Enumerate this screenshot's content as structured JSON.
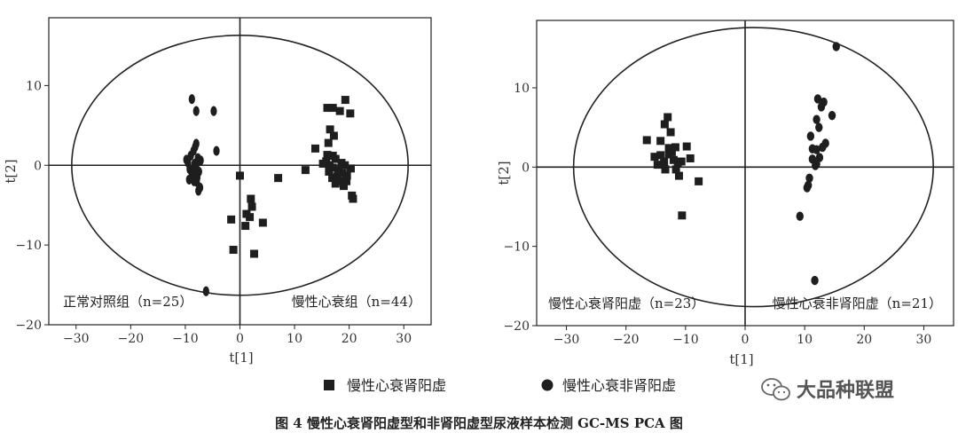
{
  "caption": "图 4   慢性心衰肾阳虚型和非肾阳虚型尿液样本检测 GC-MS PCA 图",
  "watermark": "大品种联盟",
  "legend": [
    {
      "label": "慢性心衰肾阳虚",
      "marker": "square"
    },
    {
      "label": "慢性心衰非肾阳虚",
      "marker": "circle"
    }
  ],
  "colors": {
    "marker": "#1e1e1e",
    "axis": "#222222",
    "ellipse": "#222222"
  },
  "chart_data": [
    {
      "type": "scatter",
      "xlabel": "t[1]",
      "ylabel": "t[2]",
      "xlim": [
        -35,
        35
      ],
      "ylim": [
        -20,
        18.5
      ],
      "xticks": [
        -30,
        -20,
        -10,
        0,
        10,
        20,
        30
      ],
      "yticks": [
        -20,
        -10,
        0,
        10
      ],
      "ellipse": {
        "cx": 0,
        "cy": 0,
        "rx": 30.8,
        "ry": 16.3
      },
      "group_labels": [
        {
          "text": "正常对照组（n=25）",
          "pos": "bottom-left"
        },
        {
          "text": "慢性心衰组（n=44）",
          "pos": "bottom-right"
        }
      ],
      "series": [
        {
          "marker": "diamond",
          "points": [
            [
              -8.8,
              8.3
            ],
            [
              -8,
              6.8
            ],
            [
              -4.8,
              6.8
            ],
            [
              -4.3,
              1.8
            ],
            [
              -6.2,
              -15.8
            ],
            [
              -9.8,
              0.7
            ],
            [
              -9.5,
              0.3
            ],
            [
              -9.2,
              -0.5
            ],
            [
              -9.0,
              1.2
            ],
            [
              -8.8,
              -1.3
            ],
            [
              -8.6,
              -0.8
            ],
            [
              -8.5,
              1.8
            ],
            [
              -8.3,
              0.2
            ],
            [
              -8.2,
              2.3
            ],
            [
              -8.0,
              -0.2
            ],
            [
              -7.9,
              -2.1
            ],
            [
              -7.7,
              0.9
            ],
            [
              -7.5,
              -0.8
            ],
            [
              -7.3,
              -2.8
            ],
            [
              -7.6,
              -3.2
            ],
            [
              -8.4,
              -2.0
            ],
            [
              -9.3,
              -1.8
            ],
            [
              -8.0,
              2.7
            ],
            [
              -7.2,
              0.6
            ],
            [
              -7.8,
              -1.5
            ]
          ]
        },
        {
          "marker": "square",
          "points": [
            [
              16,
              7.2
            ],
            [
              17,
              7.2
            ],
            [
              18.3,
              6.8
            ],
            [
              19.3,
              8.2
            ],
            [
              20.2,
              6.5
            ],
            [
              16.5,
              4.5
            ],
            [
              17.2,
              3.7
            ],
            [
              13.8,
              2.1
            ],
            [
              16,
              1.3
            ],
            [
              15.8,
              0.5
            ],
            [
              16.4,
              0
            ],
            [
              17,
              -0.3
            ],
            [
              17.5,
              0.8
            ],
            [
              18,
              -0.6
            ],
            [
              18.6,
              0.3
            ],
            [
              19.2,
              0
            ],
            [
              16.3,
              -0.8
            ],
            [
              17.8,
              -1.4
            ],
            [
              18.4,
              -2.0
            ],
            [
              19.5,
              -2.0
            ],
            [
              20.3,
              -0.4
            ],
            [
              20.5,
              -3.8
            ],
            [
              20.7,
              -4.2
            ],
            [
              17.0,
              1.2
            ],
            [
              18.8,
              -1.0
            ],
            [
              15.2,
              0.2
            ],
            [
              19.6,
              -1.3
            ],
            [
              16.9,
              -1.6
            ],
            [
              12,
              -0.6
            ],
            [
              7,
              -1.6
            ],
            [
              0,
              -1.3
            ],
            [
              2,
              -4.2
            ],
            [
              2.2,
              -5.2
            ],
            [
              1.2,
              -6.1
            ],
            [
              1.8,
              -6.5
            ],
            [
              -1.6,
              -6.8
            ],
            [
              4.2,
              -7.2
            ],
            [
              1,
              -7.6
            ],
            [
              -1.2,
              -10.6
            ],
            [
              2.6,
              -11.1
            ],
            [
              16.2,
              2.8
            ],
            [
              18.0,
              -0.9
            ],
            [
              17.5,
              -2.3
            ],
            [
              19.0,
              -2.6
            ]
          ]
        }
      ]
    },
    {
      "type": "scatter",
      "xlabel": "t[1]",
      "ylabel": "t[2]",
      "xlim": [
        -35,
        35
      ],
      "ylim": [
        -20,
        18.5
      ],
      "xticks": [
        -30,
        -20,
        -10,
        0,
        10,
        20,
        30
      ],
      "yticks": [
        -20,
        -10,
        0,
        10
      ],
      "ellipse": {
        "cx": 1.4,
        "cy": 0,
        "rx": 30.2,
        "ry": 17.6
      },
      "group_labels": [
        {
          "text": "慢性心衰肾阳虚（n=23）",
          "pos": "bottom-left"
        },
        {
          "text": "慢性心衰非肾阳虚（n=21）",
          "pos": "bottom-right"
        }
      ],
      "series": [
        {
          "name": "慢性心衰肾阳虚",
          "marker": "square",
          "points": [
            [
              -13,
              6.3
            ],
            [
              -13.5,
              5.4
            ],
            [
              -12.5,
              4.4
            ],
            [
              -14.2,
              3.3
            ],
            [
              -16.5,
              3.4
            ],
            [
              -12.8,
              2.4
            ],
            [
              -11.7,
              2.5
            ],
            [
              -15.2,
              1.3
            ],
            [
              -14.2,
              1.5
            ],
            [
              -12.8,
              1.6
            ],
            [
              -13.6,
              0.7
            ],
            [
              -12.0,
              0.9
            ],
            [
              -10.7,
              0.7
            ],
            [
              -14.7,
              0.3
            ],
            [
              -11.3,
              0.5
            ],
            [
              -9.8,
              2.6
            ],
            [
              -9.2,
              1.1
            ],
            [
              -13.4,
              -0.3
            ],
            [
              -11.6,
              -0.3
            ],
            [
              -11.1,
              -1.1
            ],
            [
              -7.8,
              -1.8
            ],
            [
              -10.6,
              -6.1
            ],
            [
              -12.3,
              1.9
            ]
          ]
        },
        {
          "name": "慢性心衰非肾阳虚",
          "marker": "circle",
          "points": [
            [
              15.3,
              15.2
            ],
            [
              12.2,
              8.6
            ],
            [
              12.8,
              7.6
            ],
            [
              13.2,
              8.2
            ],
            [
              14.6,
              6.5
            ],
            [
              12.0,
              6.0
            ],
            [
              12.4,
              5.0
            ],
            [
              11.0,
              3.9
            ],
            [
              13.5,
              3.0
            ],
            [
              11.3,
              2.3
            ],
            [
              12.0,
              2.2
            ],
            [
              12.5,
              1.2
            ],
            [
              12.0,
              0.4
            ],
            [
              11.3,
              1.0
            ],
            [
              11.8,
              0.2
            ],
            [
              10.8,
              -1.4
            ],
            [
              10.6,
              -2.3
            ],
            [
              10.4,
              -2.6
            ],
            [
              9.2,
              -6.2
            ],
            [
              11.7,
              -14.3
            ],
            [
              13.0,
              2.5
            ]
          ]
        }
      ]
    }
  ]
}
